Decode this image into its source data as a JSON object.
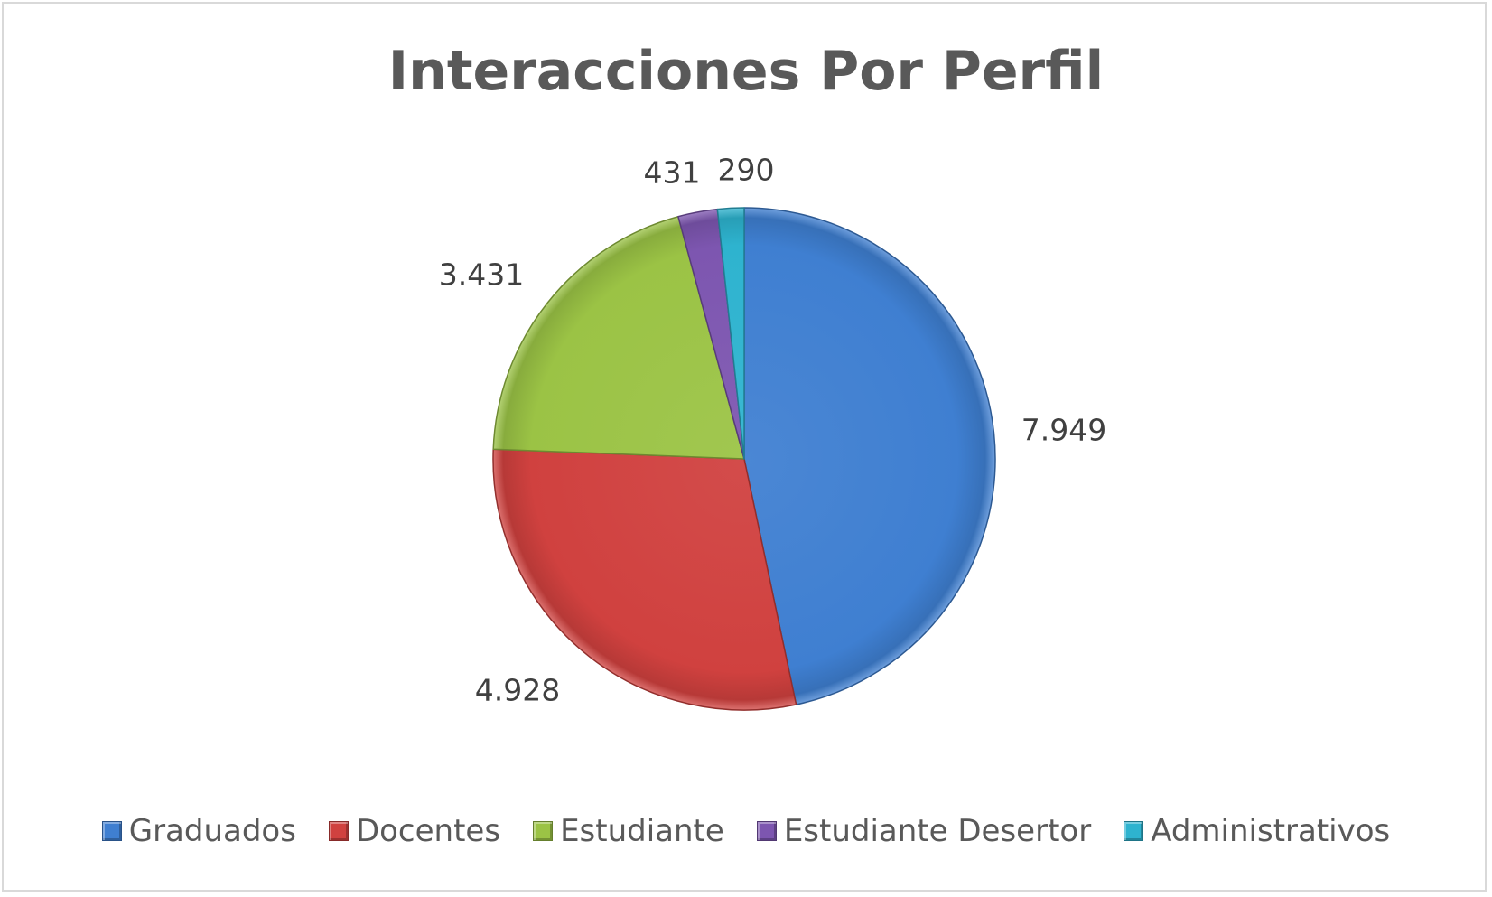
{
  "chart_data": {
    "type": "pie",
    "title": "Interacciones Por Perfil",
    "categories": [
      "Graduados",
      "Docentes",
      "Estudiante",
      "Estudiante Desertor",
      "Administrativos"
    ],
    "values": [
      7949,
      4928,
      3431,
      431,
      290
    ],
    "data_labels": [
      "7.949",
      "4.928",
      "3.431",
      "431",
      "290"
    ],
    "colors": [
      "#3f7fd1",
      "#d0413f",
      "#9bc345",
      "#7d56b0",
      "#2eb3cf"
    ],
    "legend_position": "bottom",
    "start_angle": "top (12 o'clock)",
    "direction": "clockwise"
  }
}
